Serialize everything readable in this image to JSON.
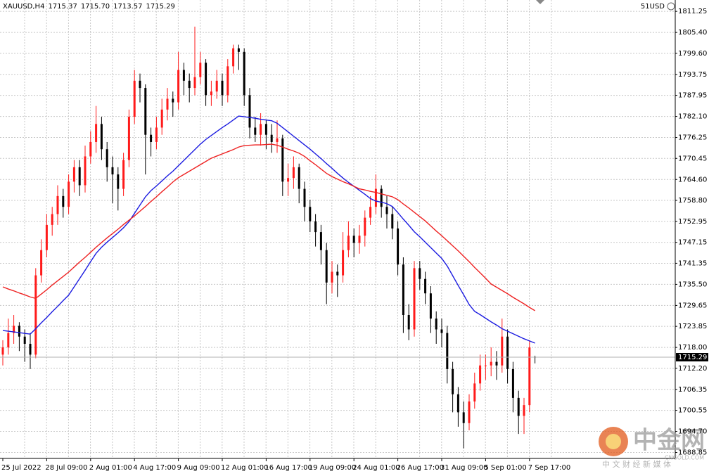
{
  "chart_data": {
    "type": "candlestick",
    "title": "XAUUSD,H4",
    "ohlc_label": [
      "1715.37",
      "1715.70",
      "1713.57",
      "1715.29"
    ],
    "currency_label": "51USD",
    "categories": [
      "25 Jul 2022",
      null,
      null,
      null,
      null,
      null,
      null,
      null,
      "28 Jul 09:00",
      null,
      null,
      null,
      null,
      null,
      null,
      null,
      "2 Aug 01:00",
      null,
      null,
      null,
      null,
      null,
      null,
      null,
      "4 Aug 17:00",
      null,
      null,
      null,
      null,
      null,
      null,
      null,
      "9 Aug 09:00",
      null,
      null,
      null,
      null,
      null,
      null,
      null,
      "12 Aug 01:00",
      null,
      null,
      null,
      null,
      null,
      null,
      null,
      "16 Aug 17:00",
      null,
      null,
      null,
      null,
      null,
      null,
      null,
      "19 Aug 09:00",
      null,
      null,
      null,
      null,
      null,
      null,
      null,
      "24 Aug 01:00",
      null,
      null,
      null,
      null,
      null,
      null,
      null,
      "26 Aug 17:00",
      null,
      null,
      null,
      null,
      null,
      null,
      null,
      "31 Aug 09:00",
      null,
      null,
      null,
      null,
      null,
      null,
      null,
      "5 Sep 01:00",
      null,
      null,
      null,
      null,
      null,
      null,
      null,
      "7 Sep 17:00",
      null
    ],
    "open": [
      1716,
      1718,
      1722,
      1724,
      1721,
      1719,
      1716,
      1738,
      1745,
      1752,
      1755,
      1760,
      1757,
      1764,
      1768,
      1763,
      1771,
      1775,
      1780,
      1773,
      1768,
      1766,
      1762,
      1770,
      1782,
      1792,
      1790,
      1777,
      1775,
      1779,
      1784,
      1787,
      1786,
      1795,
      1792,
      1790,
      1793,
      1797,
      1788,
      1789,
      1792,
      1788,
      1796,
      1801,
      1800,
      1788,
      1779,
      1777,
      1780,
      1777,
      1775,
      1776,
      1764,
      1765,
      1768,
      1762,
      1757,
      1753,
      1750,
      1745,
      1736,
      1739,
      1738,
      1745,
      1749,
      1747,
      1749,
      1754,
      1757,
      1762,
      1757,
      1755,
      1751,
      1741,
      1727,
      1723,
      1740,
      1737,
      1733,
      1726,
      1723,
      1722,
      1712,
      1705,
      1700,
      1697,
      1703,
      1708,
      1713,
      1713,
      1714,
      1713,
      1721,
      1712,
      1704,
      1699,
      1702,
      1715.37
    ],
    "high": [
      1720,
      1726,
      1727,
      1725,
      1723,
      1722,
      1740,
      1748,
      1755,
      1757,
      1763,
      1762,
      1766,
      1770,
      1770,
      1774,
      1778,
      1785,
      1782,
      1775,
      1771,
      1768,
      1772,
      1784,
      1795,
      1794,
      1791,
      1779,
      1782,
      1787,
      1790,
      1789,
      1800,
      1797,
      1794,
      1807,
      1800,
      1798,
      1792,
      1795,
      1794,
      1798,
      1802,
      1802,
      1801,
      1790,
      1782,
      1783,
      1781,
      1780,
      1781,
      1777,
      1769,
      1771,
      1769,
      1764,
      1759,
      1755,
      1752,
      1747,
      1742,
      1741,
      1750,
      1753,
      1751,
      1752,
      1756,
      1760,
      1766,
      1763,
      1760,
      1757,
      1753,
      1743,
      1730,
      1742,
      1742,
      1739,
      1735,
      1728,
      1726,
      1724,
      1714,
      1707,
      1703,
      1705,
      1711,
      1716,
      1716,
      1718,
      1717,
      1726,
      1723,
      1714,
      1706,
      1704,
      1720,
      1715.7
    ],
    "low": [
      1713,
      1716,
      1719,
      1717,
      1714,
      1712,
      1715,
      1736,
      1743,
      1749,
      1752,
      1754,
      1755,
      1761,
      1760,
      1761,
      1769,
      1772,
      1770,
      1764,
      1758,
      1756,
      1760,
      1768,
      1780,
      1786,
      1766,
      1771,
      1773,
      1777,
      1781,
      1782,
      1784,
      1788,
      1786,
      1788,
      1791,
      1785,
      1785,
      1787,
      1785,
      1786,
      1794,
      1795,
      1785,
      1776,
      1775,
      1774,
      1773,
      1772,
      1772,
      1760,
      1760,
      1762,
      1758,
      1753,
      1750,
      1746,
      1741,
      1730,
      1733,
      1732,
      1736,
      1743,
      1743,
      1744,
      1746,
      1752,
      1755,
      1754,
      1751,
      1748,
      1738,
      1722,
      1720,
      1721,
      1734,
      1730,
      1722,
      1719,
      1718,
      1708,
      1700,
      1696,
      1690,
      1695,
      1701,
      1706,
      1709,
      1710,
      1709,
      1711,
      1708,
      1700,
      1694,
      1694,
      1700,
      1713.57
    ],
    "close": [
      1718,
      1722,
      1724,
      1721,
      1719,
      1716,
      1738,
      1745,
      1752,
      1755,
      1760,
      1757,
      1764,
      1768,
      1763,
      1771,
      1775,
      1780,
      1773,
      1768,
      1766,
      1762,
      1770,
      1782,
      1792,
      1790,
      1777,
      1775,
      1779,
      1784,
      1787,
      1786,
      1795,
      1792,
      1790,
      1793,
      1797,
      1788,
      1789,
      1792,
      1788,
      1796,
      1801,
      1800,
      1788,
      1779,
      1777,
      1780,
      1777,
      1775,
      1776,
      1764,
      1765,
      1768,
      1762,
      1757,
      1753,
      1750,
      1745,
      1736,
      1739,
      1738,
      1745,
      1749,
      1747,
      1749,
      1754,
      1757,
      1762,
      1757,
      1755,
      1751,
      1741,
      1727,
      1723,
      1740,
      1737,
      1733,
      1726,
      1723,
      1722,
      1712,
      1705,
      1700,
      1697,
      1703,
      1708,
      1713,
      1713,
      1714,
      1713,
      1721,
      1712,
      1704,
      1699,
      1702,
      1718,
      1715.29
    ],
    "up_color": "#ff1a1a",
    "down_color": "#000000",
    "series": [
      {
        "color": "#1c1ce0",
        "values": [
          1722.7,
          1722.5,
          1722.3,
          1722.1,
          1721.9,
          1721.7,
          1723.2,
          1724.8,
          1726.3,
          1727.9,
          1729.4,
          1731.0,
          1732.5,
          1734.8,
          1737.1,
          1739.4,
          1741.8,
          1744.1,
          1745.8,
          1747.2,
          1748.5,
          1749.8,
          1751.2,
          1752.9,
          1755.2,
          1757.5,
          1759.8,
          1761.5,
          1762.8,
          1764.2,
          1765.6,
          1766.9,
          1768.4,
          1769.9,
          1771.4,
          1772.9,
          1774.4,
          1775.7,
          1776.8,
          1777.9,
          1779.0,
          1780.0,
          1781.1,
          1782.2,
          1782.0,
          1781.8,
          1781.6,
          1781.3,
          1781.1,
          1780.9,
          1780.2,
          1779.0,
          1777.8,
          1776.6,
          1775.4,
          1774.2,
          1773.0,
          1771.7,
          1770.4,
          1769.0,
          1767.7,
          1766.3,
          1765.0,
          1763.8,
          1762.7,
          1761.6,
          1760.5,
          1759.3,
          1758.6,
          1758.3,
          1757.9,
          1757.1,
          1755.4,
          1753.6,
          1751.9,
          1750.1,
          1748.7,
          1747.2,
          1745.7,
          1744.2,
          1742.7,
          1740.6,
          1737.9,
          1735.2,
          1732.6,
          1729.9,
          1728.0,
          1727.1,
          1726.1,
          1725.1,
          1724.2,
          1723.2,
          1722.5,
          1721.8,
          1721.1,
          1720.4,
          1719.8,
          1719.2
        ]
      },
      {
        "color": "#ee2222",
        "values": [
          1734.8,
          1734.2,
          1733.7,
          1733.1,
          1732.6,
          1732.0,
          1731.6,
          1732.8,
          1734.0,
          1735.3,
          1736.5,
          1737.7,
          1738.9,
          1740.3,
          1741.7,
          1743.0,
          1744.4,
          1745.8,
          1747.1,
          1748.4,
          1749.6,
          1750.8,
          1752.1,
          1753.3,
          1754.5,
          1755.8,
          1757.1,
          1758.5,
          1759.8,
          1761.2,
          1762.5,
          1763.9,
          1765.1,
          1766.0,
          1766.9,
          1767.8,
          1768.7,
          1769.6,
          1770.5,
          1771.1,
          1771.7,
          1772.3,
          1772.9,
          1773.6,
          1774.0,
          1774.1,
          1774.2,
          1774.2,
          1774.3,
          1774.4,
          1774.1,
          1773.6,
          1773.0,
          1772.5,
          1771.9,
          1771.0,
          1769.8,
          1768.7,
          1767.5,
          1766.3,
          1765.4,
          1764.7,
          1764.0,
          1763.4,
          1762.7,
          1762.0,
          1761.7,
          1761.3,
          1761.0,
          1760.6,
          1760.2,
          1759.8,
          1759.0,
          1757.8,
          1756.7,
          1755.5,
          1754.3,
          1753.1,
          1751.7,
          1750.3,
          1749.0,
          1747.6,
          1746.2,
          1744.8,
          1743.3,
          1741.8,
          1740.2,
          1738.7,
          1737.2,
          1735.6,
          1734.7,
          1733.8,
          1732.9,
          1731.9,
          1731.0,
          1730.1,
          1729.1,
          1728.2
        ]
      }
    ],
    "ylim": [
      1687.2,
      1814.4
    ],
    "yticks": [
      1811.25,
      {
        "value": 1805.4,
        "label": "1805.40"
      },
      {
        "value": 1799.6,
        "label": "1799.60"
      },
      1793.75,
      1787.95,
      {
        "value": 1782.1,
        "label": "1782.10"
      },
      1776.25,
      1770.45,
      {
        "value": 1764.6,
        "label": "1764.60"
      },
      {
        "value": 1758.8,
        "label": "1758.80"
      },
      1752.95,
      1747.15,
      1741.35,
      {
        "value": 1735.5,
        "label": "1735.50"
      },
      1729.65,
      1723.85,
      {
        "value": 1718,
        "label": "1718.00"
      },
      {
        "value": 1712.2,
        "label": "1712.20"
      },
      1706.35,
      1700.55,
      {
        "value": 1694.7,
        "label": "1694.70"
      },
      1688.85
    ],
    "grid": true
  },
  "watermark": {
    "name": "中金网",
    "site": "CNGOLD.COM",
    "slogan": "中 文 财 经 新 媒 体"
  }
}
